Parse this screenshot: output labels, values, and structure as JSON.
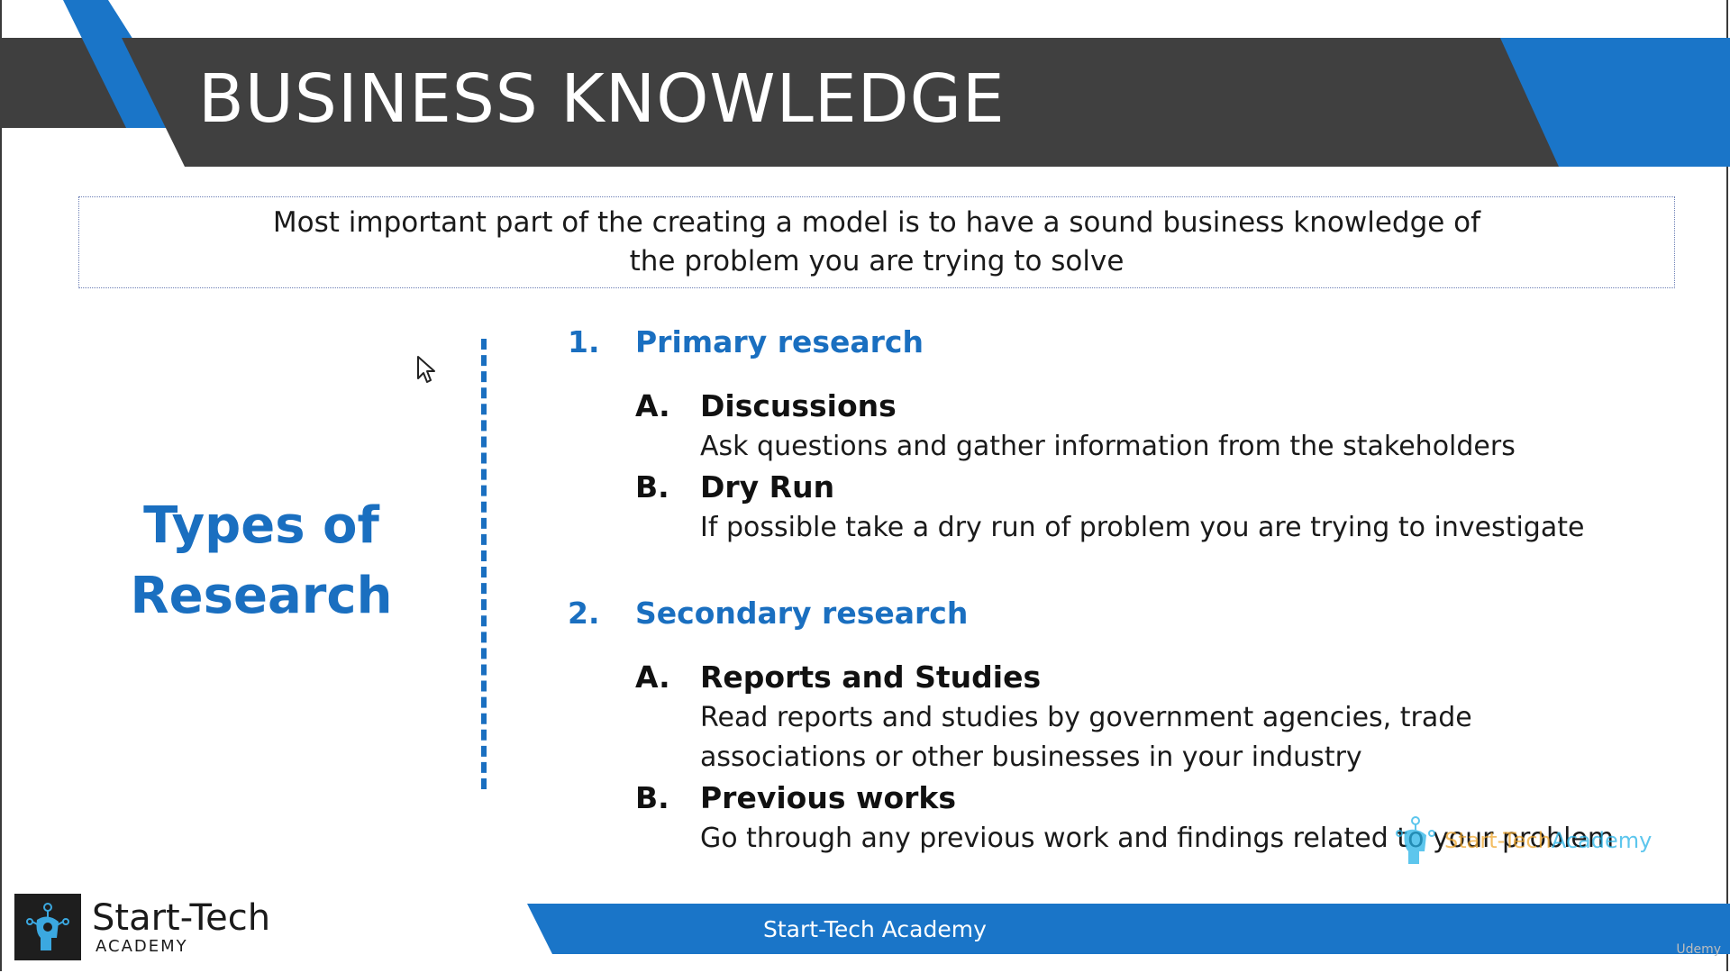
{
  "slide": {
    "title": "BUSINESS KNOWLEDGE",
    "intro": "Most important part of the creating a model is to have a sound business knowledge of the problem you are trying to solve",
    "side_heading_line1": "Types of",
    "side_heading_line2": "Research"
  },
  "sections": [
    {
      "number": "1.",
      "title": "Primary research",
      "items": [
        {
          "letter": "A.",
          "title": "Discussions",
          "desc": "Ask questions and gather information from the stakeholders"
        },
        {
          "letter": "B.",
          "title": "Dry Run",
          "desc": "If possible take a dry run of problem you are trying to investigate"
        }
      ]
    },
    {
      "number": "2.",
      "title": "Secondary research",
      "items": [
        {
          "letter": "A.",
          "title": "Reports and Studies",
          "desc": "Read reports and studies by government agencies, trade associations or other businesses in your industry"
        },
        {
          "letter": "B.",
          "title": "Previous works",
          "desc": "Go through any previous work and findings related to your problem"
        }
      ]
    }
  ],
  "watermark": {
    "part1": "Start-Tech",
    "part2": "Academy"
  },
  "footer": {
    "text": "Start-Tech Academy"
  },
  "logo": {
    "name": "Start-Tech",
    "sub": "ACADEMY"
  },
  "udemy": "Udemy",
  "colors": {
    "accent_blue": "#1a75c8",
    "heading_blue": "#1a6fc0",
    "dark_bar": "#404040"
  }
}
